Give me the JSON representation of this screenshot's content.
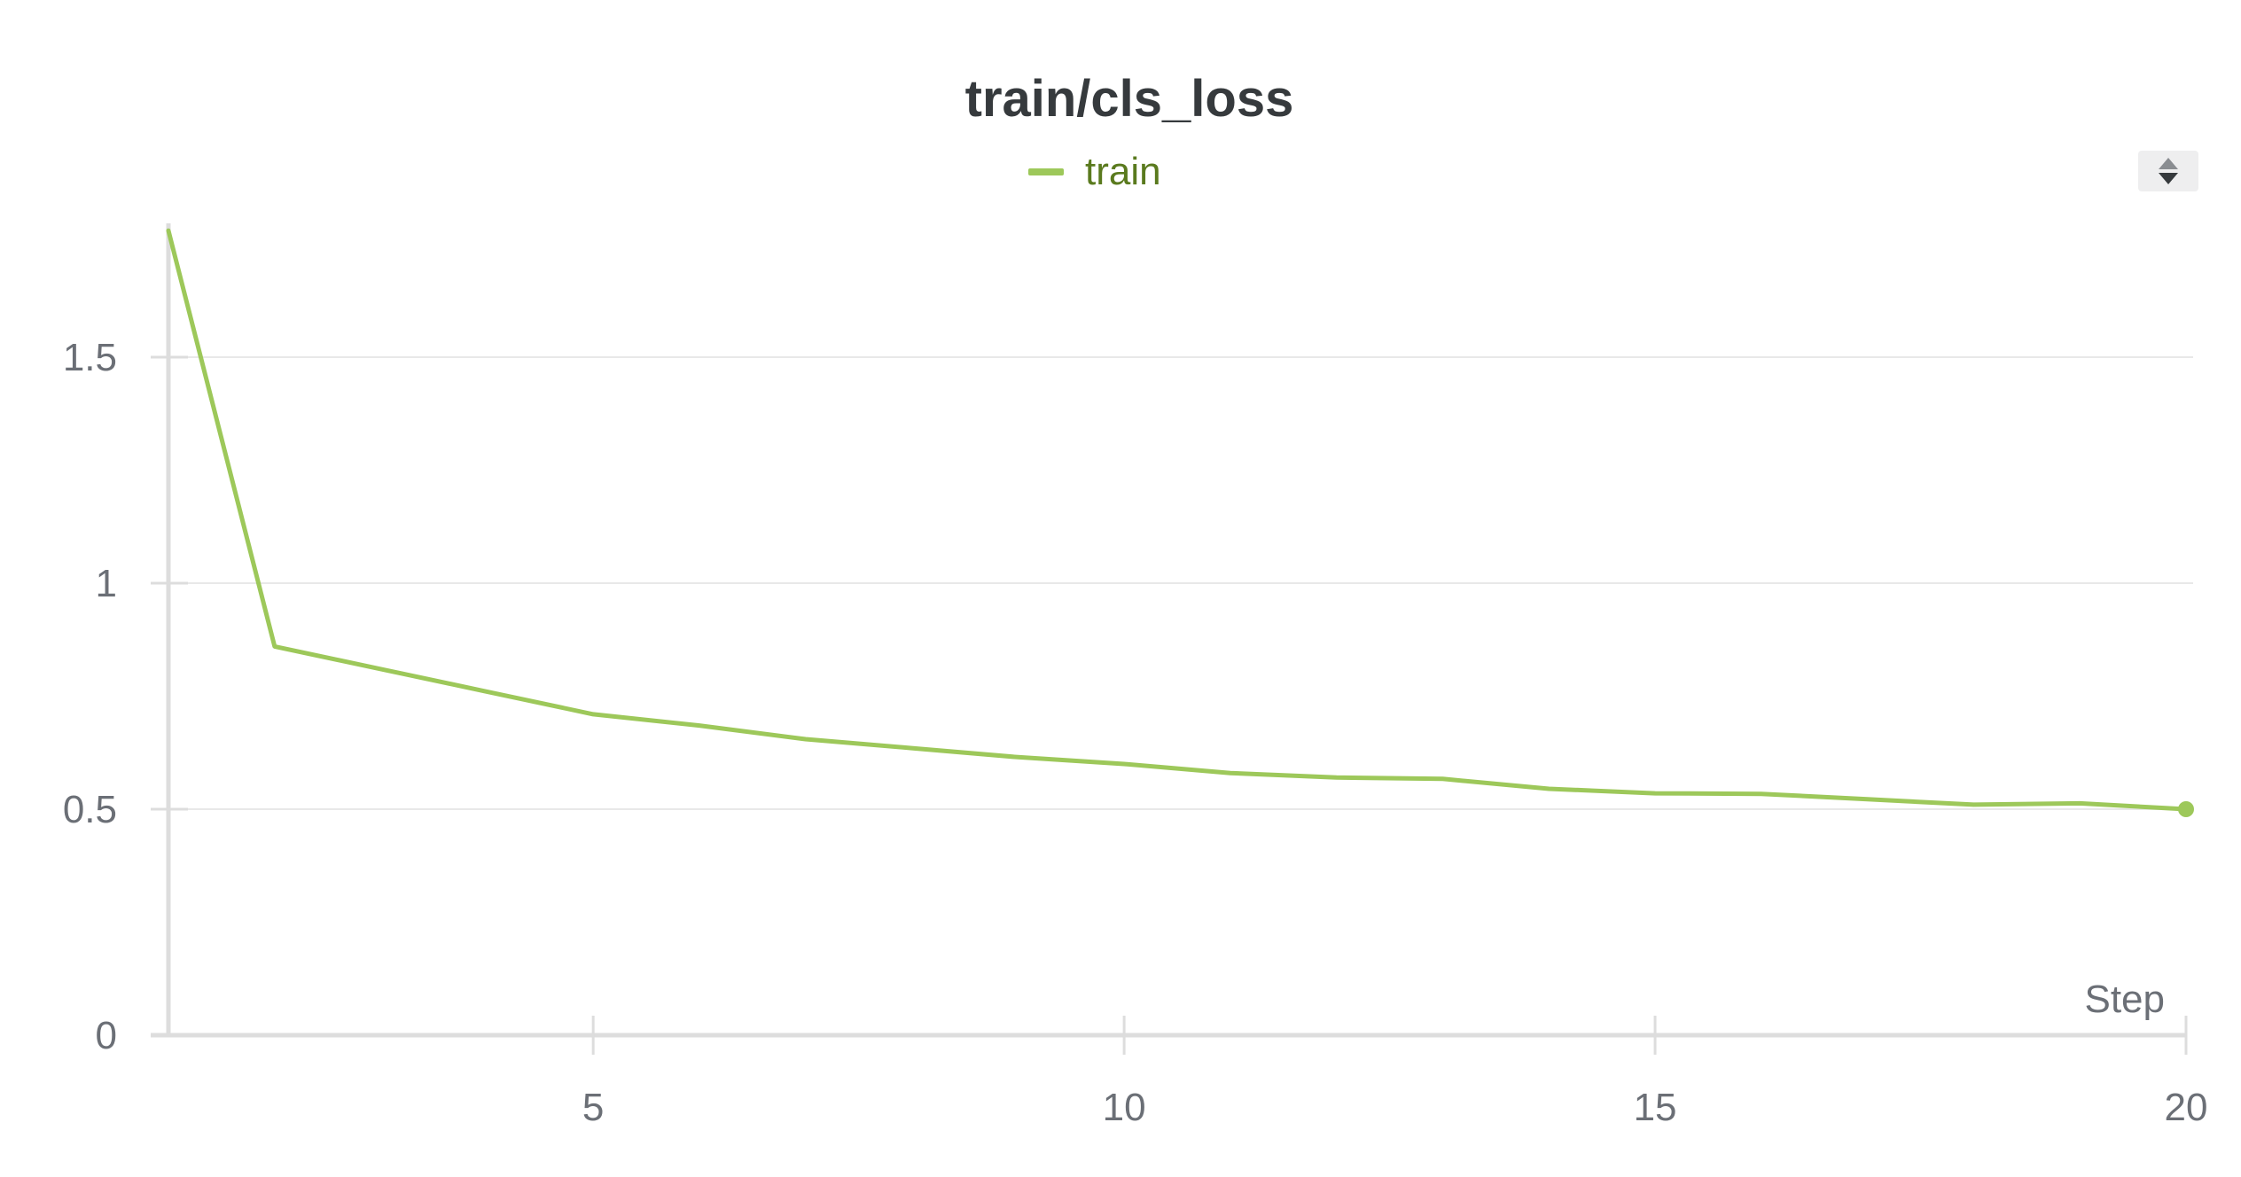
{
  "chart_data": {
    "type": "line",
    "title": "train/cls_loss",
    "xlabel": "Step",
    "ylabel": "",
    "legend": {
      "position": "top-center",
      "entries": [
        "train"
      ]
    },
    "grid": true,
    "xlim": [
      1,
      20
    ],
    "ylim": [
      0,
      1.8
    ],
    "xticks": [
      5,
      10,
      15,
      20
    ],
    "yticks": [
      0,
      0.5,
      1,
      1.5
    ],
    "xtick_labels": [
      "5",
      "10",
      "15",
      "20"
    ],
    "ytick_labels": [
      "0",
      "0.5",
      "1",
      "1.5"
    ],
    "series": [
      {
        "name": "train",
        "color": "#9dc85a",
        "x": [
          1,
          2,
          3,
          4,
          5,
          6,
          7,
          8,
          9,
          10,
          11,
          12,
          13,
          14,
          15,
          16,
          17,
          18,
          19,
          20
        ],
        "y": [
          1.78,
          0.86,
          0.81,
          0.76,
          0.71,
          0.685,
          0.655,
          0.635,
          0.615,
          0.6,
          0.58,
          0.57,
          0.567,
          0.545,
          0.535,
          0.534,
          0.522,
          0.51,
          0.513,
          0.5
        ]
      }
    ]
  }
}
